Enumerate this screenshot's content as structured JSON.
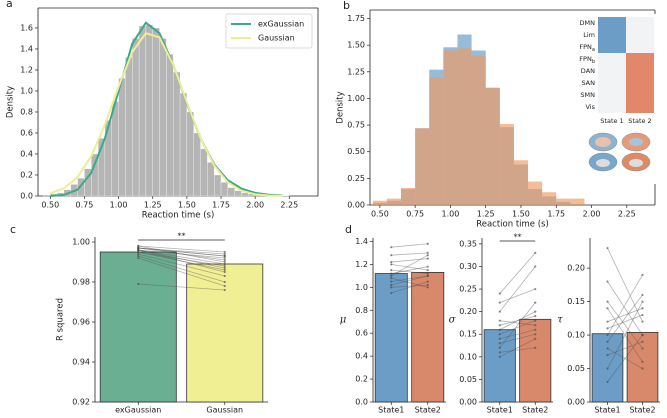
{
  "chart_data": [
    {
      "type": "histogram_fit",
      "panel": "a",
      "xlabel": "Reaction time (s)",
      "ylabel": "Density",
      "bins": [
        0.45,
        0.5,
        0.55,
        0.6,
        0.65,
        0.7,
        0.75,
        0.8,
        0.85,
        0.9,
        0.95,
        1.0,
        1.05,
        1.1,
        1.15,
        1.2,
        1.25,
        1.3,
        1.35,
        1.4,
        1.45,
        1.5,
        1.55,
        1.6,
        1.65,
        1.7,
        1.75,
        1.8,
        1.85,
        1.9,
        1.95,
        2.0,
        2.05,
        2.1,
        2.15,
        2.2,
        2.25
      ],
      "values": [
        0.01,
        0.02,
        0.03,
        0.06,
        0.11,
        0.17,
        0.26,
        0.4,
        0.55,
        0.72,
        0.9,
        1.12,
        1.32,
        1.5,
        1.62,
        1.63,
        1.6,
        1.5,
        1.35,
        1.18,
        0.98,
        0.8,
        0.6,
        0.45,
        0.32,
        0.2,
        0.13,
        0.08,
        0.05,
        0.03,
        0.02,
        0.01,
        0.01,
        0.005,
        0.003,
        0.002
      ],
      "color": "#b5b5b5",
      "series": [
        {
          "name": "exGaussian",
          "color": "#3aa98a",
          "x": [
            0.5,
            0.6,
            0.7,
            0.8,
            0.9,
            1.0,
            1.1,
            1.2,
            1.3,
            1.4,
            1.5,
            1.6,
            1.7,
            1.8,
            1.9,
            2.0,
            2.1,
            2.2
          ],
          "values": [
            0.0,
            0.01,
            0.06,
            0.22,
            0.55,
            1.0,
            1.45,
            1.65,
            1.55,
            1.25,
            0.88,
            0.55,
            0.3,
            0.15,
            0.07,
            0.03,
            0.012,
            0.005
          ]
        },
        {
          "name": "Gaussian",
          "color": "#eded96",
          "x": [
            0.5,
            0.6,
            0.7,
            0.8,
            0.9,
            1.0,
            1.1,
            1.2,
            1.3,
            1.4,
            1.5,
            1.6,
            1.7,
            1.8,
            1.9,
            2.0,
            2.1,
            2.2
          ],
          "values": [
            0.026,
            0.074,
            0.18,
            0.38,
            0.68,
            1.04,
            1.37,
            1.55,
            1.51,
            1.25,
            0.89,
            0.55,
            0.29,
            0.13,
            0.05,
            0.016,
            0.005,
            0.001
          ]
        }
      ],
      "legend": "upper right",
      "xlim": [
        0.41,
        2.46
      ],
      "ylim": [
        0,
        1.79
      ],
      "xticks": [
        {
          "value": 0.5,
          "label": "0.50"
        },
        0.75,
        {
          "value": 1,
          "label": "1.00"
        },
        1.25,
        {
          "value": 1.5,
          "label": "1.50"
        },
        1.75,
        {
          "value": 2,
          "label": "2.00"
        },
        2.25
      ],
      "yticks": [
        {
          "value": 0,
          "label": "0.0"
        },
        0.2,
        0.4,
        0.6,
        0.8,
        {
          "value": 1,
          "label": "1.0"
        },
        1.2,
        1.4,
        1.6
      ]
    },
    {
      "type": "histogram_overlay",
      "panel": "b",
      "xlabel": "Reaction time (s)",
      "ylabel": "Density",
      "bins": [
        0.45,
        0.55,
        0.65,
        0.75,
        0.85,
        0.95,
        1.05,
        1.15,
        1.25,
        1.35,
        1.45,
        1.55,
        1.65,
        1.75,
        1.85,
        1.95,
        2.05
      ],
      "series": [
        {
          "color": "#5f97c4",
          "values": [
            0.02,
            0.04,
            0.15,
            0.72,
            1.27,
            1.48,
            1.6,
            1.45,
            1.1,
            0.73,
            0.38,
            0.15,
            0.08,
            0.03,
            0.01,
            0.0
          ]
        },
        {
          "color": "#f0995f",
          "values": [
            0.04,
            0.06,
            0.16,
            0.72,
            1.2,
            1.45,
            1.47,
            1.4,
            1.1,
            0.76,
            0.42,
            0.22,
            0.12,
            0.06,
            0.06,
            0.0
          ]
        }
      ],
      "inset": {
        "rows": [
          {
            "label": "DMN",
            "state": 0
          },
          {
            "label": "Lim",
            "state": 0
          },
          {
            "label": "FPN",
            "sub": "a",
            "state": 0
          },
          {
            "label": "FPN",
            "sub": "b",
            "state": 1
          },
          {
            "label": "DAN",
            "state": 1
          },
          {
            "label": "SAN",
            "state": 1
          },
          {
            "label": "SMN",
            "state": 1
          },
          {
            "label": "Vis",
            "state": 1
          }
        ],
        "columns": [
          {
            "label": "State 1",
            "color": "#6b9dc6"
          },
          {
            "label": "State 2",
            "color": "#e3876a"
          }
        ]
      },
      "xlim": [
        0.43,
        2.45
      ],
      "ylim": [
        0,
        1.83
      ],
      "xticks": [
        {
          "value": 0.5,
          "label": "0.50"
        },
        0.75,
        {
          "value": 1,
          "label": "1.00"
        },
        1.25,
        {
          "value": 1.5,
          "label": "1.50"
        },
        1.75,
        {
          "value": 2,
          "label": "2.00"
        },
        2.25
      ],
      "yticks": [
        {
          "value": 0,
          "label": "0.00"
        },
        0.25,
        {
          "value": 0.5,
          "label": "0.50"
        },
        0.75,
        {
          "value": 1,
          "label": "1.00"
        },
        1.25,
        {
          "value": 1.5,
          "label": "1.50"
        },
        1.75
      ]
    },
    {
      "type": "paired_bar",
      "panel": "c",
      "ylabel": "R squared",
      "annotation": "**",
      "categories": [
        "exGaussian",
        "Gaussian"
      ],
      "values": [
        0.995,
        0.989
      ],
      "colors": [
        "#6aaf92",
        "#f1ef94"
      ],
      "subjects": [
        [
          0.997,
          0.994
        ],
        [
          0.996,
          0.992
        ],
        [
          0.998,
          0.995
        ],
        [
          0.995,
          0.988
        ],
        [
          0.997,
          0.991
        ],
        [
          0.996,
          0.985
        ],
        [
          0.994,
          0.983
        ],
        [
          0.997,
          0.993
        ],
        [
          0.993,
          0.98
        ],
        [
          0.996,
          0.989
        ],
        [
          0.995,
          0.986
        ],
        [
          0.998,
          0.99
        ],
        [
          0.992,
          0.978
        ],
        [
          0.979,
          0.976
        ],
        [
          0.996,
          0.987
        ],
        [
          0.997,
          0.993
        ]
      ],
      "ylim": [
        0.92,
        1.0025
      ],
      "yticks": [
        0.92,
        0.94,
        0.96,
        0.98,
        {
          "value": 1,
          "label": "1.00"
        }
      ]
    },
    {
      "type": "paired_bar",
      "panel": "d",
      "ylabel": "μ",
      "categories": [
        "State1",
        "State2"
      ],
      "values": [
        1.12,
        1.13
      ],
      "colors": [
        "#6b9dc6",
        "#d9896b"
      ],
      "subjects": [
        [
          1.05,
          1.1
        ],
        [
          1.2,
          1.15
        ],
        [
          1.35,
          1.38
        ],
        [
          1.1,
          1.28
        ],
        [
          1.0,
          1.02
        ],
        [
          1.15,
          1.12
        ],
        [
          1.28,
          1.3
        ],
        [
          0.95,
          1.05
        ],
        [
          1.08,
          1.0
        ],
        [
          1.22,
          1.25
        ],
        [
          1.12,
          1.18
        ],
        [
          1.02,
          1.1
        ]
      ],
      "ylim": [
        0,
        1.43
      ],
      "yticks": [
        {
          "value": 0,
          "label": "0.0"
        },
        0.2,
        0.4,
        0.6,
        0.8,
        {
          "value": 1,
          "label": "1.0"
        },
        1.2,
        1.4
      ]
    },
    {
      "type": "paired_bar",
      "ylabel": "σ",
      "annotation": "**",
      "categories": [
        "State1",
        "State2"
      ],
      "values": [
        0.16,
        0.183
      ],
      "colors": [
        "#6b9dc6",
        "#d9896b"
      ],
      "subjects": [
        [
          0.2,
          0.3
        ],
        [
          0.15,
          0.18
        ],
        [
          0.12,
          0.22
        ],
        [
          0.18,
          0.17
        ],
        [
          0.1,
          0.14
        ],
        [
          0.22,
          0.25
        ],
        [
          0.14,
          0.16
        ],
        [
          0.16,
          0.2
        ],
        [
          0.13,
          0.15
        ],
        [
          0.24,
          0.33
        ],
        [
          0.11,
          0.12
        ],
        [
          0.17,
          0.19
        ]
      ],
      "ylim": [
        0,
        0.363
      ],
      "yticks": [
        {
          "value": 0,
          "label": "0.00"
        },
        0.05,
        {
          "value": 0.1,
          "label": "0.10"
        },
        0.15,
        {
          "value": 0.2,
          "label": "0.20"
        },
        0.25,
        {
          "value": 0.3,
          "label": "0.30"
        },
        0.35
      ]
    },
    {
      "type": "paired_bar",
      "ylabel": "τ",
      "categories": [
        "State1",
        "State2"
      ],
      "values": [
        0.102,
        0.104
      ],
      "colors": [
        "#6b9dc6",
        "#d9896b"
      ],
      "subjects": [
        [
          0.05,
          0.15
        ],
        [
          0.15,
          0.08
        ],
        [
          0.23,
          0.12
        ],
        [
          0.1,
          0.19
        ],
        [
          0.08,
          0.05
        ],
        [
          0.12,
          0.14
        ],
        [
          0.03,
          0.1
        ],
        [
          0.18,
          0.1
        ],
        [
          0.09,
          0.16
        ],
        [
          0.14,
          0.06
        ],
        [
          0.07,
          0.09
        ],
        [
          0.11,
          0.13
        ]
      ],
      "ylim": [
        0,
        0.245
      ],
      "yticks": [
        {
          "value": 0,
          "label": "0.00"
        },
        0.05,
        {
          "value": 0.1,
          "label": "0.10"
        },
        0.15,
        {
          "value": 0.2,
          "label": "0.20"
        }
      ]
    }
  ]
}
